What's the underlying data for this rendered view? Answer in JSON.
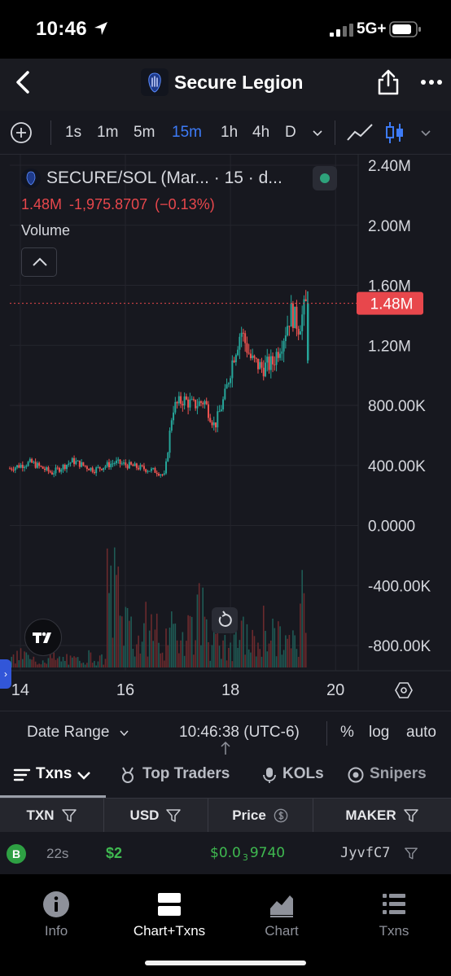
{
  "status_bar": {
    "time": "10:46",
    "network": "5G+"
  },
  "header": {
    "title": "Secure Legion"
  },
  "toolbar": {
    "timeframes": [
      "1s",
      "1m",
      "5m",
      "15m",
      "1h",
      "4h",
      "D"
    ],
    "active_timeframe": "15m"
  },
  "chart": {
    "symbol_line": "SECURE/SOL (Mar... · 15 · d...",
    "last_value": "1.48M",
    "change": "-1,975.8707",
    "change_pct": "(−0.13%)",
    "volume_label": "Volume",
    "current_price_tag": "1.48M",
    "y_axis_labels": [
      "2.40M",
      "2.00M",
      "1.60M",
      "1.20M",
      "800.00K",
      "400.00K",
      "0.0000",
      "-400.00K",
      "-800.00K"
    ],
    "x_axis_labels": [
      "14",
      "16",
      "18",
      "20"
    ],
    "colors": {
      "up": "#26a69a",
      "down": "#ef5350",
      "price_tag": "#e8474c",
      "background": "#17181f"
    }
  },
  "range_bar": {
    "date_range_label": "Date Range",
    "time": "10:46:38 (UTC-6)",
    "percent_label": "%",
    "log_label": "log",
    "auto_label": "auto"
  },
  "tabs": {
    "items": [
      "Txns",
      "Top Traders",
      "KOLs",
      "Snipers"
    ],
    "active": "Txns"
  },
  "table": {
    "headers": [
      "TXN",
      "USD",
      "Price",
      "MAKER"
    ],
    "rows": [
      {
        "type": "B",
        "age": "22s",
        "usd": "$2",
        "price_prefix": "$0.0",
        "price_zeros": "3",
        "price_digits": "9740",
        "maker": "JyvfC7"
      }
    ]
  },
  "bottom_nav": {
    "items": [
      "Info",
      "Chart+Txns",
      "Chart",
      "Txns"
    ],
    "active": "Chart+Txns"
  },
  "chart_data": {
    "type": "candlestick",
    "title": "SECURE/SOL (Mar... · 15 · d...",
    "x_tick_labels": [
      "14",
      "16",
      "18",
      "20"
    ],
    "ylim": [
      -1000000,
      2500000
    ],
    "y_tick_labels": [
      "2.40M",
      "2.00M",
      "1.60M",
      "1.20M",
      "800.00K",
      "400.00K",
      "0.0000",
      "-400.00K",
      "-800.00K"
    ],
    "x_range_days": [
      13.8,
      20.4
    ],
    "grid": true,
    "series": [
      {
        "name": "SECURE/SOL",
        "day": [
          13.8,
          14.2,
          14.6,
          15.0,
          15.4,
          15.8,
          16.2,
          16.6,
          16.75,
          16.9,
          17.1,
          17.3,
          17.5,
          17.7,
          17.9,
          18.05,
          18.2,
          18.4,
          18.6,
          18.8,
          19.0,
          19.15,
          19.3,
          19.45
        ],
        "close": [
          380000,
          420000,
          350000,
          430000,
          370000,
          420000,
          390000,
          360000,
          330000,
          780000,
          840000,
          800000,
          830000,
          660000,
          870000,
          1120000,
          1300000,
          1100000,
          1050000,
          1080000,
          1250000,
          1420000,
          1330000,
          1480000
        ]
      }
    ],
    "volume_relative": [
      0.1,
      0.15,
      0.08,
      0.12,
      0.1,
      0.09,
      0.14,
      0.1,
      0.95,
      0.6,
      0.35,
      0.5,
      0.3,
      0.45,
      0.55,
      0.7,
      0.3,
      0.25,
      0.4,
      0.3,
      0.5,
      0.35,
      0.3,
      0.85
    ]
  }
}
